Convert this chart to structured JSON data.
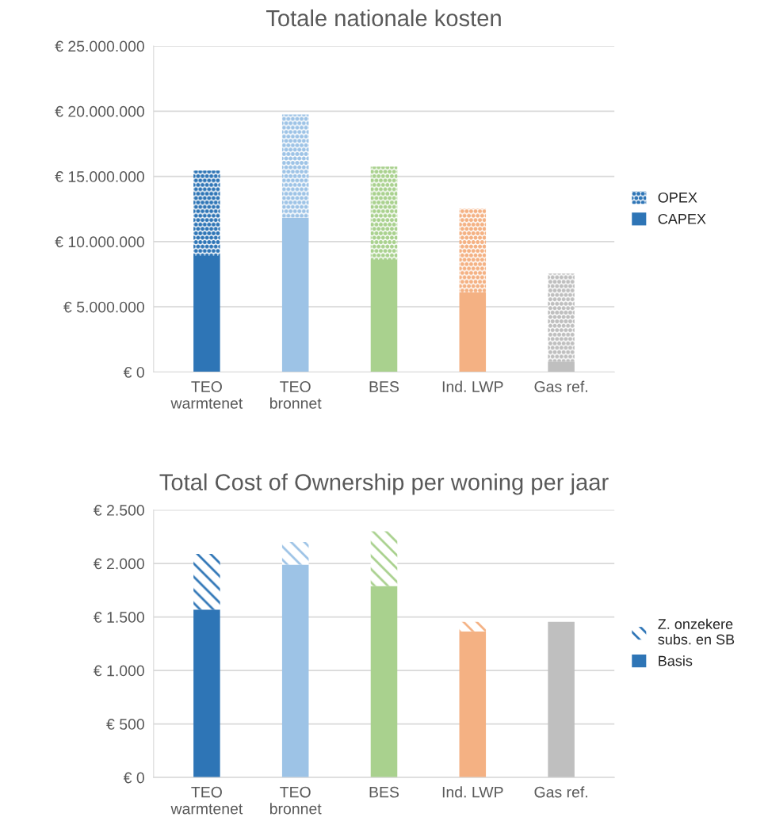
{
  "chart_data": [
    {
      "type": "bar",
      "title": "Totale nationale kosten",
      "stacked": true,
      "grid": "y",
      "legend": "right",
      "categories": [
        "TEO warmtenet",
        "TEO bronnet",
        "BES",
        "Ind. LWP",
        "Gas ref."
      ],
      "series": [
        {
          "name": "CAPEX",
          "colors": [
            "#2e75b6",
            "#9dc3e6",
            "#a9d18e",
            "#f4b183",
            "#bfbfbf"
          ],
          "values": [
            8900000,
            11850000,
            8600000,
            6100000,
            800000
          ]
        },
        {
          "name": "OPEX",
          "colors": [
            "#2e75b6",
            "#9dc3e6",
            "#a9d18e",
            "#f4b183",
            "#bfbfbf"
          ],
          "values": [
            6550000,
            7900000,
            7150000,
            6450000,
            6750000
          ]
        }
      ],
      "ylim": [
        0,
        25000000
      ],
      "yticks": [
        {
          "value": 0,
          "label": "€ 0"
        },
        {
          "value": 5000000,
          "label": "€ 5.000.000"
        },
        {
          "value": 10000000,
          "label": "€ 10.000.000"
        },
        {
          "value": 15000000,
          "label": "€ 15.000.000"
        },
        {
          "value": 20000000,
          "label": "€ 20.000.000"
        },
        {
          "value": 25000000,
          "label": "€ 25.000.000"
        }
      ]
    },
    {
      "type": "bar",
      "title": "Total Cost of Ownership per woning per jaar",
      "stacked": true,
      "grid": "y",
      "legend": "right",
      "categories": [
        "TEO warmtenet",
        "TEO bronnet",
        "BES",
        "Ind. LWP",
        "Gas ref."
      ],
      "series": [
        {
          "name": "Basis",
          "colors": [
            "#2e75b6",
            "#9dc3e6",
            "#a9d18e",
            "#f4b183",
            "#bfbfbf"
          ],
          "values": [
            1570,
            1990,
            1790,
            1365,
            1455
          ]
        },
        {
          "name": "Z. onzekere subs. en SB",
          "colors": [
            "#2e75b6",
            "#9dc3e6",
            "#a9d18e",
            "#f4b183",
            "#bfbfbf"
          ],
          "values": [
            520,
            210,
            510,
            90,
            0
          ]
        }
      ],
      "ylim": [
        0,
        2500
      ],
      "yticks": [
        {
          "value": 0,
          "label": "€ 0"
        },
        {
          "value": 500,
          "label": "€ 500"
        },
        {
          "value": 1000,
          "label": "€ 1.000"
        },
        {
          "value": 1500,
          "label": "€ 1.500"
        },
        {
          "value": 2000,
          "label": "€ 2.000"
        },
        {
          "value": 2500,
          "label": "€ 2.500"
        }
      ]
    }
  ]
}
